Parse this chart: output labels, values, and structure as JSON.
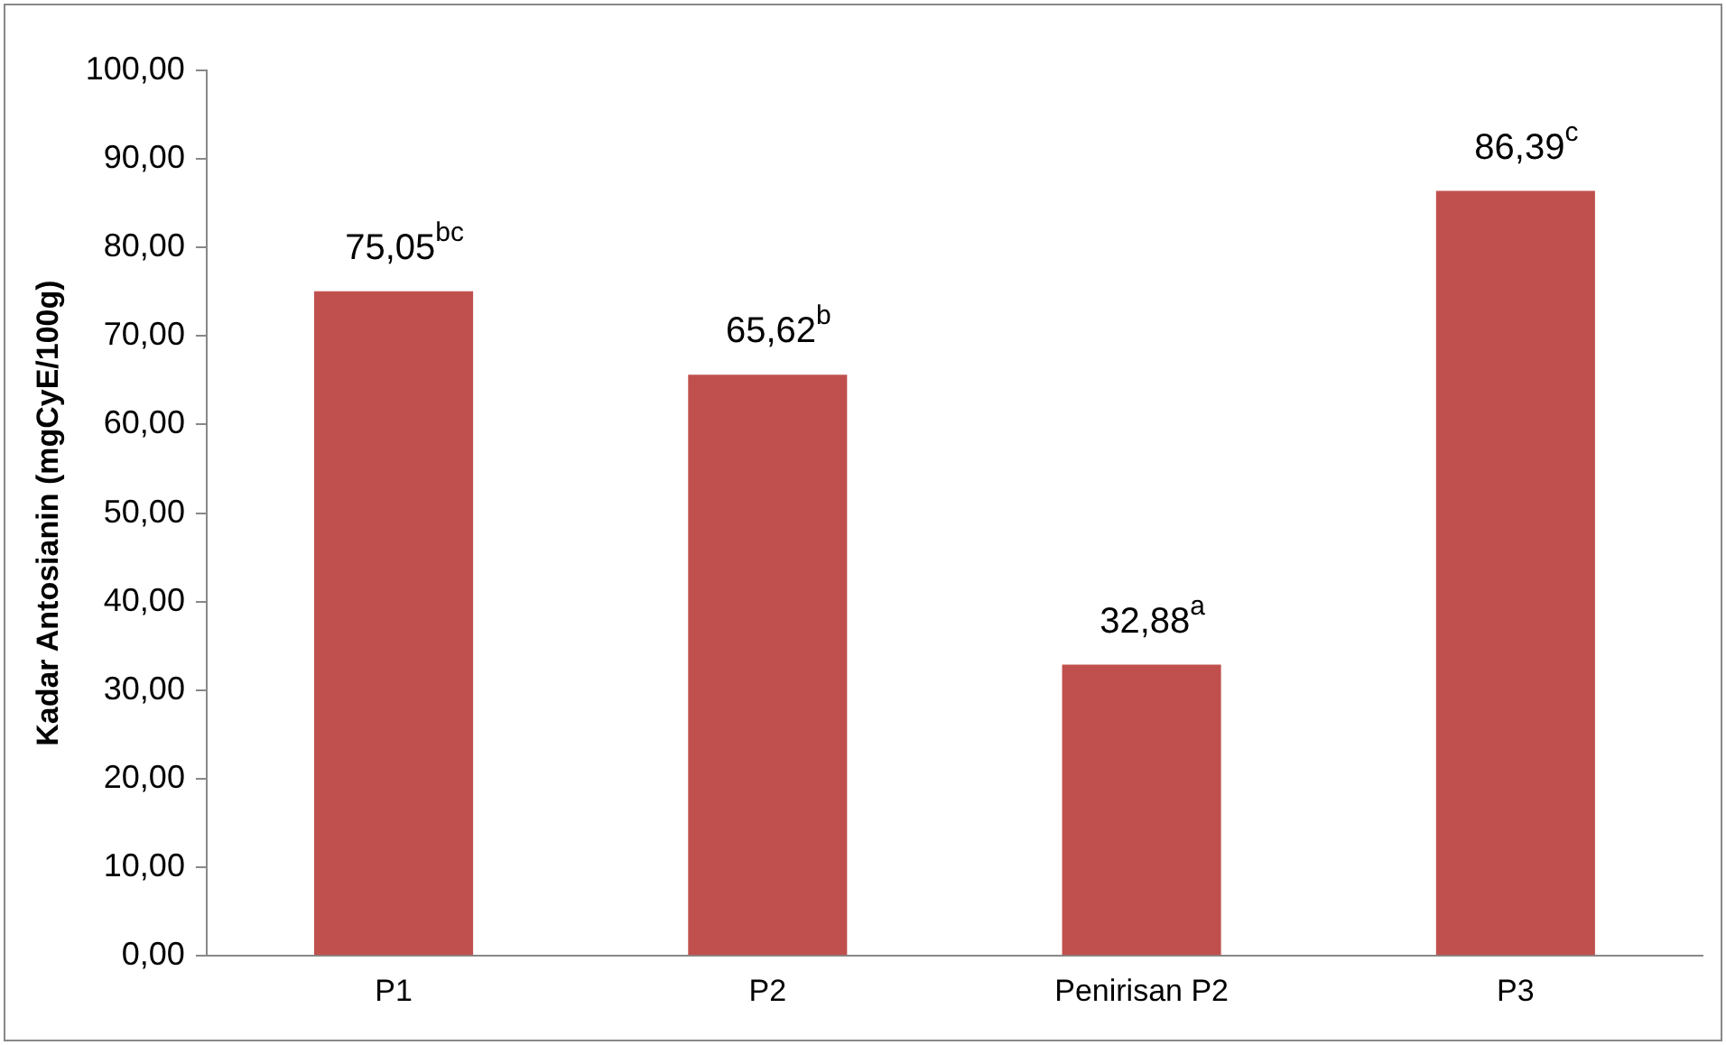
{
  "chart_data": {
    "type": "bar",
    "ylabel": "Kadar Antosianin (mgCyE/100g)",
    "categories": [
      "P1",
      "P2",
      "Penirisan P2",
      "P3"
    ],
    "values": [
      75.05,
      65.62,
      32.88,
      86.39
    ],
    "color": "#c0504d",
    "value_labels": [
      "75,05$^{bc}$",
      "65,62$^{b}$",
      "32,88$^{a}$",
      "86,39$^{c}$"
    ],
    "ylim": [
      0,
      100
    ],
    "yticks": [
      {
        "value": 0,
        "label": "0,00"
      },
      {
        "value": 10,
        "label": "10,00"
      },
      {
        "value": 20,
        "label": "20,00"
      },
      {
        "value": 30,
        "label": "30,00"
      },
      {
        "value": 40,
        "label": "40,00"
      },
      {
        "value": 50,
        "label": "50,00"
      },
      {
        "value": 60,
        "label": "60,00"
      },
      {
        "value": 70,
        "label": "70,00"
      },
      {
        "value": 80,
        "label": "80,00"
      },
      {
        "value": 90,
        "label": "90,00"
      },
      {
        "value": 100,
        "label": "100,00"
      }
    ],
    "grid": false,
    "legend": false
  }
}
